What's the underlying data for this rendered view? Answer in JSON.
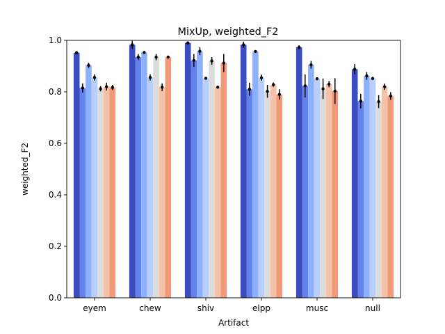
{
  "chart_data": {
    "type": "bar",
    "title": "MixUp, weighted_F2",
    "xlabel": "Artifact",
    "ylabel": "weighted_F2",
    "ylim": [
      0,
      1.0
    ],
    "yticks": [
      "0.0",
      "0.2",
      "0.4",
      "0.6",
      "0.8",
      "1.0"
    ],
    "categories": [
      "eyem",
      "chew",
      "shiv",
      "elpp",
      "musc",
      "null"
    ],
    "grid": false,
    "legend": "none",
    "colors": [
      "#3b4cc0",
      "#6282ea",
      "#8db0fe",
      "#b8d0f9",
      "#dddcdc",
      "#f5c1a9",
      "#f49a7b",
      "#dd5f4b",
      "#b40426"
    ],
    "series": [
      {
        "values": [
          0.952,
          0.983,
          0.99,
          0.983,
          0.973,
          0.888
        ],
        "errors": [
          0.005,
          0.015,
          0.005,
          0.012,
          0.008,
          0.02
        ]
      },
      {
        "values": [
          0.815,
          0.935,
          0.922,
          0.81,
          0.823,
          0.764
        ],
        "errors": [
          0.018,
          0.012,
          0.025,
          0.025,
          0.045,
          0.028
        ]
      },
      {
        "values": [
          0.903,
          0.953,
          0.958,
          0.957,
          0.905,
          0.862
        ],
        "errors": [
          0.01,
          0.006,
          0.015,
          0.004,
          0.015,
          0.015
        ]
      },
      {
        "values": [
          0.856,
          0.856,
          0.853,
          0.855,
          0.851,
          0.852
        ],
        "errors": [
          0.012,
          0.012,
          0.005,
          0.012,
          0.004,
          0.006
        ]
      },
      {
        "values": [
          0.812,
          0.935,
          0.92,
          0.802,
          0.812,
          0.762
        ],
        "errors": [
          0.01,
          0.012,
          0.015,
          0.025,
          0.04,
          0.025
        ]
      },
      {
        "values": [
          0.82,
          0.818,
          0.818,
          0.828,
          0.83,
          0.82
        ],
        "errors": [
          0.015,
          0.015,
          0.004,
          0.008,
          0.012,
          0.012
        ]
      },
      {
        "values": [
          0.817,
          0.935,
          0.912,
          0.79,
          0.803,
          0.784
        ],
        "errors": [
          0.01,
          0.003,
          0.035,
          0.02,
          0.05,
          0.015
        ]
      }
    ]
  }
}
